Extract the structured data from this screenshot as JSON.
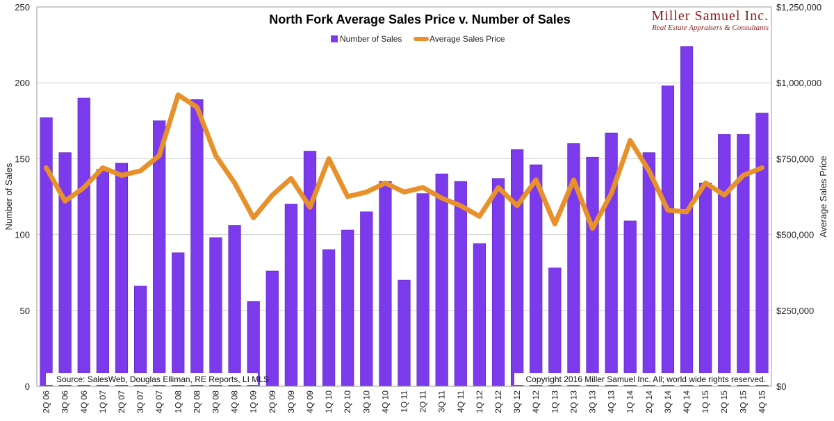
{
  "brand": {
    "name": "Miller Samuel Inc.",
    "tagline": "Real Estate Appraisers & Consultants"
  },
  "notes": {
    "source": "Source: SalesWeb, Douglas Elliman, RE Reports, LI MLS",
    "copyright": "Copyright 2016 Miller Samuel Inc.  All; world wide rights reserved."
  },
  "colors": {
    "bars": "#7c3aed",
    "line": "#e8902a",
    "grid": "#cfcfcf"
  },
  "chart_data": {
    "type": "bar",
    "title": "North Fork Average Sales Price v. Number of Sales",
    "ylabel": "Number of Sales",
    "y2label": "Average Sales Price",
    "ylim": [
      0,
      250
    ],
    "y2lim": [
      0,
      1250000
    ],
    "yticks": [
      "0",
      "50",
      "100",
      "150",
      "200",
      "250"
    ],
    "y2ticks": [
      "$0",
      "$250,000",
      "$500,000",
      "$750,000",
      "$1,000,000",
      "$1,250,000"
    ],
    "grid": true,
    "legend_position": "top-center",
    "categories": [
      "2Q 06",
      "3Q 06",
      "4Q 06",
      "1Q 07",
      "2Q 07",
      "3Q 07",
      "4Q 07",
      "1Q 08",
      "2Q 08",
      "3Q 08",
      "4Q 08",
      "1Q 09",
      "2Q 09",
      "3Q 09",
      "4Q 09",
      "1Q 10",
      "2Q 10",
      "3Q 10",
      "4Q 10",
      "1Q 11",
      "2Q 11",
      "3Q 11",
      "4Q 11",
      "1Q 12",
      "2Q 12",
      "3Q 12",
      "4Q 12",
      "1Q 13",
      "2Q 13",
      "3Q 13",
      "4Q 13",
      "1Q 14",
      "2Q 14",
      "3Q 14",
      "4Q 14",
      "1Q 15",
      "2Q 15",
      "3Q 15",
      "4Q 15"
    ],
    "series": [
      {
        "name": "Number of Sales",
        "type": "bar",
        "axis": "left",
        "values": [
          177,
          154,
          190,
          143,
          147,
          66,
          175,
          88,
          189,
          98,
          106,
          56,
          76,
          120,
          155,
          90,
          103,
          115,
          135,
          70,
          127,
          140,
          135,
          94,
          137,
          156,
          146,
          78,
          160,
          151,
          167,
          109,
          154,
          198,
          224,
          134,
          166,
          166,
          180
        ]
      },
      {
        "name": "Average Sales Price",
        "type": "line",
        "axis": "right",
        "values": [
          720000,
          610000,
          655000,
          720000,
          695000,
          710000,
          760000,
          960000,
          920000,
          760000,
          670000,
          555000,
          630000,
          685000,
          590000,
          750000,
          625000,
          640000,
          670000,
          640000,
          655000,
          620000,
          595000,
          560000,
          655000,
          595000,
          680000,
          535000,
          680000,
          520000,
          635000,
          810000,
          710000,
          580000,
          575000,
          670000,
          630000,
          695000,
          720000
        ]
      }
    ]
  }
}
